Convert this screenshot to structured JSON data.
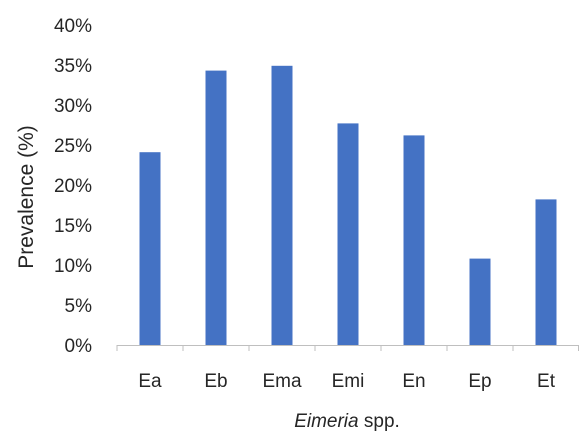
{
  "chart_data": {
    "type": "bar",
    "categories": [
      "Ea",
      "Eb",
      "Ema",
      "Emi",
      "En",
      "Ep",
      "Et"
    ],
    "values": [
      24.1,
      34.3,
      34.9,
      27.7,
      26.2,
      10.8,
      18.2
    ],
    "ylabel": "Prevalence (%)",
    "xlabel_italic": "Eimeria",
    "xlabel_rest": " spp.",
    "ylim": [
      0,
      40
    ],
    "yticks": [
      "0%",
      "5%",
      "10%",
      "15%",
      "20%",
      "25%",
      "30%",
      "35%",
      "40%"
    ],
    "grid": false,
    "legend": "none",
    "bar_color": "#4472C4",
    "axis_color": "#BFBFBF"
  }
}
